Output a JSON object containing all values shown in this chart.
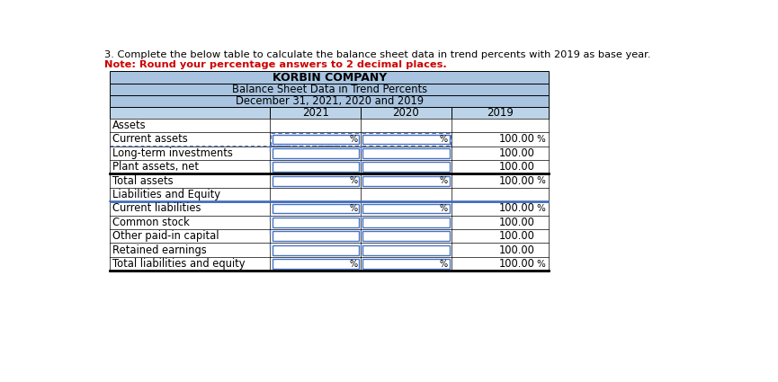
{
  "title_text": "3. Complete the below table to calculate the balance sheet data in trend percents with 2019 as base year.",
  "note_text": "Note: Round your percentage answers to 2 decimal places.",
  "company_name": "KORBIN COMPANY",
  "subtitle1": "Balance Sheet Data in Trend Percents",
  "subtitle2": "December 31, 2021, 2020 and 2019",
  "col_headers": [
    "2021",
    "2020",
    "2019"
  ],
  "rows": [
    {
      "label": "Assets",
      "val2019": "",
      "show_pct": false,
      "input_2021": false,
      "input_2020": false,
      "bold": false,
      "thick_top": false,
      "thick_bottom": false,
      "dotted_box": false
    },
    {
      "label": "Current assets",
      "val2019": "100.00",
      "show_pct": true,
      "input_2021": true,
      "input_2020": true,
      "bold": false,
      "thick_top": false,
      "thick_bottom": false,
      "dotted_box": true
    },
    {
      "label": "Long-term investments",
      "val2019": "100.00",
      "show_pct": false,
      "input_2021": true,
      "input_2020": true,
      "bold": false,
      "thick_top": false,
      "thick_bottom": false,
      "dotted_box": false
    },
    {
      "label": "Plant assets, net",
      "val2019": "100.00",
      "show_pct": false,
      "input_2021": true,
      "input_2020": true,
      "bold": false,
      "thick_top": false,
      "thick_bottom": false,
      "dotted_box": false
    },
    {
      "label": "Total assets",
      "val2019": "100.00",
      "show_pct": true,
      "input_2021": true,
      "input_2020": true,
      "bold": false,
      "thick_top": true,
      "thick_bottom": false,
      "dotted_box": false
    },
    {
      "label": "Liabilities and Equity",
      "val2019": "",
      "show_pct": false,
      "input_2021": false,
      "input_2020": false,
      "bold": false,
      "thick_top": false,
      "thick_bottom": false,
      "dotted_box": false
    },
    {
      "label": "Current liabilities",
      "val2019": "100.00",
      "show_pct": true,
      "input_2021": true,
      "input_2020": true,
      "bold": false,
      "thick_top": false,
      "thick_bottom": false,
      "dotted_box": false
    },
    {
      "label": "Common stock",
      "val2019": "100.00",
      "show_pct": false,
      "input_2021": true,
      "input_2020": true,
      "bold": false,
      "thick_top": false,
      "thick_bottom": false,
      "dotted_box": false
    },
    {
      "label": "Other paid-in capital",
      "val2019": "100.00",
      "show_pct": false,
      "input_2021": true,
      "input_2020": true,
      "bold": false,
      "thick_top": false,
      "thick_bottom": false,
      "dotted_box": false
    },
    {
      "label": "Retained earnings",
      "val2019": "100.00",
      "show_pct": false,
      "input_2021": true,
      "input_2020": true,
      "bold": false,
      "thick_top": false,
      "thick_bottom": false,
      "dotted_box": false
    },
    {
      "label": "Total liabilities and equity",
      "val2019": "100.00",
      "show_pct": true,
      "input_2021": true,
      "input_2020": true,
      "bold": false,
      "thick_top": false,
      "thick_bottom": true,
      "dotted_box": false
    }
  ],
  "header_bg": "#a8c4e0",
  "col_header_bg": "#bdd4e8",
  "table_bg": "#ffffff",
  "border_color": "#000000",
  "input_box_color": "#4472C4",
  "dotted_line_color": "#4472C4",
  "title_color": "#000000",
  "note_color": "#CC0000",
  "font_size": 8.5,
  "header_font_size": 9.0
}
